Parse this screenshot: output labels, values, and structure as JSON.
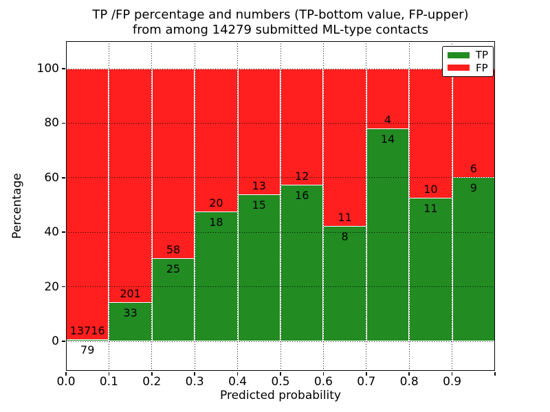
{
  "title": {
    "line1": "TP /FP percentage and numbers (TP-bottom value, FP-upper)",
    "line2": "from among 14279 submitted ML-type contacts"
  },
  "chart_data": {
    "type": "bar",
    "stacked": true,
    "title": "TP /FP percentage and numbers (TP-bottom value, FP-upper) from among 14279 submitted ML-type contacts",
    "total_contacts": 14279,
    "xlabel": "Predicted probability",
    "ylabel": "Percentage",
    "xlim": [
      0.0,
      1.0
    ],
    "ylim": [
      -10.8,
      110.1
    ],
    "grid": "dotted",
    "bin_width": 0.1,
    "bin_starts": [
      0.0,
      0.1,
      0.2,
      0.3,
      0.4,
      0.5,
      0.6,
      0.7,
      0.8,
      0.9
    ],
    "x_tick_labels": [
      "0.0",
      "0.1",
      "0.2",
      "0.3",
      "0.4",
      "0.5",
      "0.6",
      "0.7",
      "0.8",
      "0.9"
    ],
    "y_tick_values": [
      0,
      20,
      40,
      60,
      80,
      100
    ],
    "y_tick_labels": [
      "0",
      "20",
      "40",
      "60",
      "80",
      "100"
    ],
    "series": [
      {
        "name": "TP",
        "color": "#228b22",
        "counts": [
          79,
          33,
          25,
          18,
          15,
          16,
          8,
          14,
          11,
          9
        ]
      },
      {
        "name": "FP",
        "color": "#ff1f1f",
        "counts": [
          13716,
          201,
          58,
          20,
          13,
          12,
          11,
          4,
          10,
          6
        ]
      }
    ],
    "tp_percent": [
      0.57,
      14.1,
      30.12,
      47.37,
      53.57,
      57.14,
      42.11,
      77.78,
      52.38,
      60.0
    ],
    "legend": {
      "position": "upper right",
      "entries": [
        {
          "label": "TP",
          "color": "#228b22"
        },
        {
          "label": "FP",
          "color": "#ff1f1f"
        }
      ]
    }
  },
  "colors": {
    "tp": "#228b22",
    "fp": "#ff1f1f",
    "grid": "#000000",
    "axis": "#000000",
    "background": "#ffffff"
  }
}
